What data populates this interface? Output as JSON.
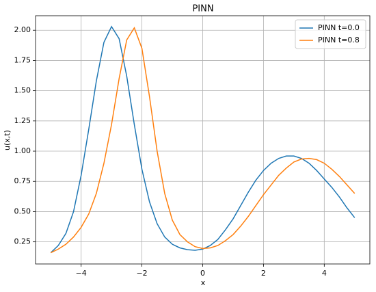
{
  "chart_data": {
    "type": "line",
    "title": "PINN",
    "x_label": "x",
    "y_label": "u(x,t)",
    "x": [
      -5,
      -4.75,
      -4.5,
      -4.25,
      -4,
      -3.75,
      -3.5,
      -3.25,
      -3,
      -2.75,
      -2.5,
      -2.25,
      -2,
      -1.75,
      -1.5,
      -1.25,
      -1,
      -0.75,
      -0.5,
      -0.25,
      0,
      0.25,
      0.5,
      0.75,
      1,
      1.25,
      1.5,
      1.75,
      2,
      2.25,
      2.5,
      2.75,
      3,
      3.25,
      3.5,
      3.75,
      4,
      4.25,
      4.5,
      4.75,
      5
    ],
    "series": [
      {
        "name": "PINN t=0.0",
        "color": "#1f77b4",
        "values": [
          0.16,
          0.22,
          0.32,
          0.5,
          0.8,
          1.18,
          1.58,
          1.9,
          2.03,
          1.93,
          1.62,
          1.22,
          0.85,
          0.58,
          0.4,
          0.29,
          0.23,
          0.2,
          0.185,
          0.18,
          0.19,
          0.22,
          0.27,
          0.35,
          0.44,
          0.55,
          0.66,
          0.76,
          0.84,
          0.9,
          0.94,
          0.96,
          0.96,
          0.94,
          0.9,
          0.84,
          0.77,
          0.7,
          0.62,
          0.53,
          0.45
        ]
      },
      {
        "name": "PINN t=0.8",
        "color": "#ff7f0e",
        "values": [
          0.16,
          0.19,
          0.23,
          0.29,
          0.37,
          0.48,
          0.65,
          0.9,
          1.22,
          1.6,
          1.92,
          2.02,
          1.85,
          1.45,
          1.0,
          0.65,
          0.43,
          0.31,
          0.25,
          0.21,
          0.195,
          0.2,
          0.22,
          0.26,
          0.31,
          0.38,
          0.46,
          0.55,
          0.64,
          0.72,
          0.8,
          0.86,
          0.91,
          0.935,
          0.94,
          0.93,
          0.9,
          0.85,
          0.79,
          0.72,
          0.65
        ]
      }
    ],
    "xlim": [
      -5.5,
      5.5
    ],
    "ylim": [
      0.067,
      2.12
    ],
    "xticks": [
      {
        "value": -4,
        "label": "−4"
      },
      {
        "value": -2,
        "label": "−2"
      },
      0,
      2,
      4
    ],
    "yticks": [
      {
        "value": 0.25,
        "label": "0.25"
      },
      {
        "value": 0.5,
        "label": "0.50"
      },
      {
        "value": 0.75,
        "label": "0.75"
      },
      {
        "value": 1,
        "label": "1.00"
      },
      {
        "value": 1.25,
        "label": "1.25"
      },
      {
        "value": 1.5,
        "label": "1.50"
      },
      {
        "value": 1.75,
        "label": "1.75"
      },
      {
        "value": 2,
        "label": "2.00"
      }
    ],
    "grid": true,
    "legend": "upper right"
  }
}
